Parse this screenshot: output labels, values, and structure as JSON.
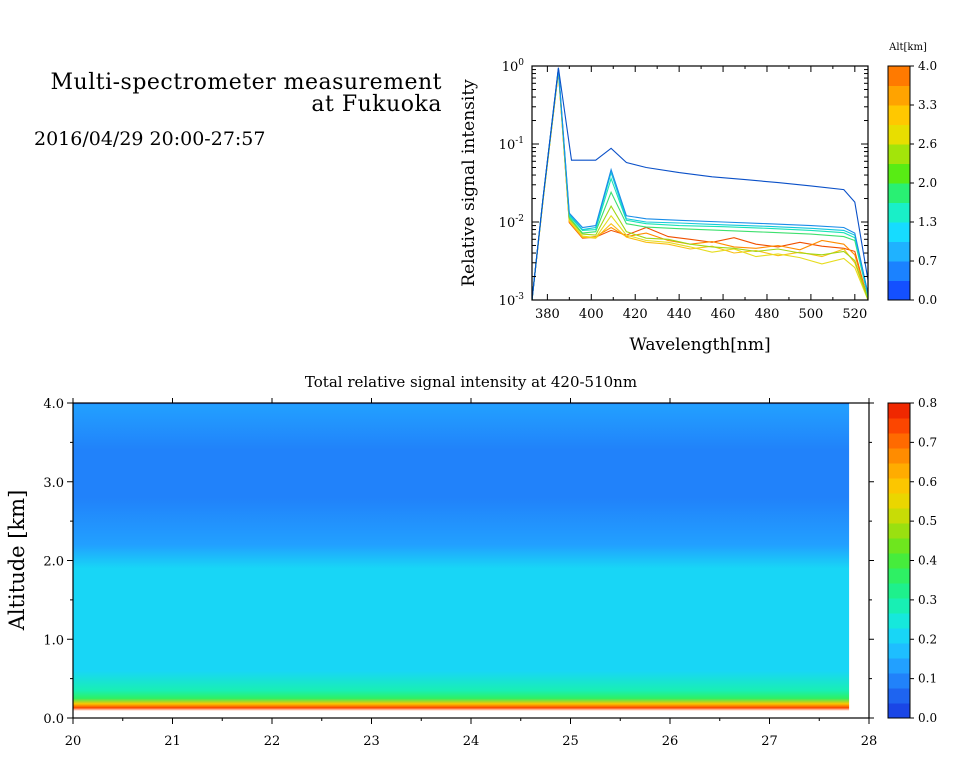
{
  "header": {
    "title_line1": "Multi-spectrometer measurement",
    "title_line2": "at Fukuoka",
    "period": "2016/04/29 20:00-27:57"
  },
  "chart_data": [
    {
      "type": "line",
      "title": "",
      "xlabel": "Wavelength[nm]",
      "ylabel": "Relative signal intensity",
      "xlim": [
        373,
        526
      ],
      "ylim": [
        0.001,
        1
      ],
      "yscale": "log",
      "xticks": [
        380,
        400,
        420,
        440,
        460,
        480,
        500,
        520
      ],
      "yticks": [
        {
          "value": 0.001,
          "base": "10",
          "exp": "-3"
        },
        {
          "value": 0.01,
          "base": "10",
          "exp": "-2"
        },
        {
          "value": 0.1,
          "base": "10",
          "exp": "-1"
        },
        {
          "value": 1,
          "base": "10",
          "exp": "0"
        }
      ],
      "legend_title": "Alt[km]",
      "colorbar": {
        "ticks": [
          "0.0",
          "0.7",
          "1.3",
          "2.0",
          "2.6",
          "3.3",
          "4.0"
        ],
        "colors": [
          "#1450ff",
          "#1b82ff",
          "#1fb2ff",
          "#16dcff",
          "#19efc8",
          "#29f073",
          "#58ec14",
          "#a3e40a",
          "#e8de00",
          "#ffc800",
          "#ffa300",
          "#ff7a00"
        ]
      },
      "series": [
        {
          "color": "#0a50c8",
          "x": [
            373,
            378,
            385,
            391,
            396,
            402,
            409,
            416,
            425,
            440,
            455,
            470,
            485,
            500,
            515,
            520,
            526
          ],
          "y": [
            0.001,
            0.02,
            0.95,
            0.062,
            0.062,
            0.062,
            0.088,
            0.058,
            0.05,
            0.043,
            0.038,
            0.035,
            0.032,
            0.029,
            0.026,
            0.018,
            0.0018
          ]
        },
        {
          "color": "#1a8ce8",
          "x": [
            373,
            378,
            385,
            390,
            396,
            402,
            409,
            416,
            425,
            440,
            460,
            480,
            500,
            515,
            520,
            526
          ],
          "y": [
            0.001,
            0.02,
            0.93,
            0.013,
            0.0085,
            0.009,
            0.047,
            0.012,
            0.011,
            0.0105,
            0.01,
            0.0095,
            0.009,
            0.0085,
            0.0072,
            0.0012
          ]
        },
        {
          "color": "#12c8dc",
          "x": [
            373,
            378,
            385,
            390,
            396,
            402,
            409,
            416,
            425,
            440,
            460,
            480,
            500,
            515,
            520,
            526
          ],
          "y": [
            0.001,
            0.02,
            0.92,
            0.0125,
            0.008,
            0.0085,
            0.043,
            0.011,
            0.01,
            0.0097,
            0.0092,
            0.0088,
            0.0083,
            0.0078,
            0.0068,
            0.0012
          ]
        },
        {
          "color": "#1ae4b4",
          "x": [
            373,
            378,
            385,
            390,
            396,
            402,
            409,
            416,
            425,
            440,
            460,
            480,
            500,
            515,
            520,
            526
          ],
          "y": [
            0.001,
            0.02,
            0.91,
            0.012,
            0.0078,
            0.008,
            0.036,
            0.0105,
            0.0095,
            0.009,
            0.0087,
            0.0083,
            0.0078,
            0.0073,
            0.0063,
            0.0011
          ]
        },
        {
          "color": "#3ee06e",
          "x": [
            373,
            378,
            385,
            390,
            396,
            402,
            409,
            416,
            425,
            440,
            460,
            480,
            500,
            515,
            520,
            526
          ],
          "y": [
            0.001,
            0.02,
            0.9,
            0.0115,
            0.0072,
            0.0075,
            0.024,
            0.0095,
            0.0086,
            0.0082,
            0.0078,
            0.0074,
            0.007,
            0.0065,
            0.0058,
            0.0011
          ]
        },
        {
          "color": "#a0d614",
          "x": [
            373,
            378,
            385,
            390,
            396,
            402,
            409,
            416,
            425,
            435,
            445,
            455,
            465,
            475,
            485,
            495,
            505,
            515,
            520,
            526
          ],
          "y": [
            0.001,
            0.019,
            0.88,
            0.011,
            0.007,
            0.0068,
            0.016,
            0.0075,
            0.0062,
            0.006,
            0.0052,
            0.0048,
            0.0046,
            0.0042,
            0.0045,
            0.004,
            0.0038,
            0.0042,
            0.0032,
            0.001
          ]
        },
        {
          "color": "#e6dc1e",
          "x": [
            373,
            378,
            385,
            390,
            396,
            402,
            409,
            416,
            425,
            435,
            445,
            455,
            465,
            475,
            485,
            495,
            505,
            515,
            520,
            526
          ],
          "y": [
            0.001,
            0.019,
            0.87,
            0.0105,
            0.0066,
            0.0063,
            0.012,
            0.0068,
            0.0058,
            0.0055,
            0.0048,
            0.0041,
            0.0045,
            0.0036,
            0.0039,
            0.0035,
            0.0029,
            0.0034,
            0.0026,
            0.001
          ]
        },
        {
          "color": "#fabe14",
          "x": [
            373,
            378,
            385,
            390,
            396,
            402,
            409,
            416,
            425,
            435,
            445,
            455,
            465,
            475,
            485,
            495,
            505,
            515,
            520,
            526
          ],
          "y": [
            0.001,
            0.019,
            0.86,
            0.0102,
            0.0064,
            0.0062,
            0.0095,
            0.0064,
            0.0055,
            0.0052,
            0.0045,
            0.0049,
            0.004,
            0.0043,
            0.0037,
            0.0041,
            0.0036,
            0.0045,
            0.003,
            0.001
          ]
        },
        {
          "color": "#ff8c00",
          "x": [
            373,
            378,
            385,
            390,
            396,
            402,
            409,
            416,
            425,
            435,
            445,
            455,
            465,
            475,
            485,
            495,
            505,
            515,
            520,
            526
          ],
          "y": [
            0.001,
            0.019,
            0.85,
            0.01,
            0.0063,
            0.0065,
            0.0085,
            0.0065,
            0.0072,
            0.0058,
            0.0052,
            0.0056,
            0.0048,
            0.0046,
            0.005,
            0.0044,
            0.0058,
            0.0052,
            0.0038,
            0.001
          ]
        },
        {
          "color": "#f05000",
          "x": [
            373,
            378,
            385,
            390,
            396,
            402,
            409,
            416,
            425,
            435,
            445,
            455,
            465,
            475,
            485,
            495,
            505,
            515,
            520,
            526
          ],
          "y": [
            0.001,
            0.019,
            0.84,
            0.0098,
            0.0062,
            0.0064,
            0.0078,
            0.0068,
            0.0085,
            0.0065,
            0.006,
            0.0055,
            0.0063,
            0.0052,
            0.0048,
            0.0055,
            0.0049,
            0.0046,
            0.0042,
            0.001
          ]
        }
      ]
    },
    {
      "type": "heatmap",
      "title": "Total relative signal intensity at 420-510nm",
      "xlabel": "",
      "ylabel": "Altitude [km]",
      "xlim": [
        20,
        28
      ],
      "ylim": [
        0,
        4
      ],
      "x_data_end": 27.8,
      "xticks": [
        "20",
        "21",
        "22",
        "23",
        "24",
        "25",
        "26",
        "27",
        "28"
      ],
      "yticks": [
        "0.0",
        "1.0",
        "2.0",
        "3.0",
        "4.0"
      ],
      "colorbar": {
        "ticks": [
          "0.0",
          "0.1",
          "0.2",
          "0.3",
          "0.4",
          "0.5",
          "0.6",
          "0.7",
          "0.8"
        ],
        "colors": [
          "#1a46e6",
          "#1e64f0",
          "#2182fa",
          "#22a0ff",
          "#1ebeff",
          "#18d6f6",
          "#16e8dc",
          "#18efb4",
          "#1ef08c",
          "#2ef064",
          "#46ec3c",
          "#6ee61e",
          "#9ae010",
          "#c8dc06",
          "#ead600",
          "#fcc600",
          "#ffac00",
          "#ff8c00",
          "#ff6a00",
          "#fc4600",
          "#f02800"
        ]
      },
      "profile": [
        {
          "alt": 0.13,
          "value": 0.76
        },
        {
          "alt": 0.18,
          "value": 0.6
        },
        {
          "alt": 0.25,
          "value": 0.34
        },
        {
          "alt": 0.35,
          "value": 0.26
        },
        {
          "alt": 0.6,
          "value": 0.2
        },
        {
          "alt": 1.0,
          "value": 0.2
        },
        {
          "alt": 1.5,
          "value": 0.2
        },
        {
          "alt": 1.9,
          "value": 0.2
        },
        {
          "alt": 2.2,
          "value": 0.1
        },
        {
          "alt": 2.8,
          "value": 0.06
        },
        {
          "alt": 3.4,
          "value": 0.08
        },
        {
          "alt": 3.98,
          "value": 0.11
        },
        {
          "alt": 4.0,
          "value": 0.0
        }
      ]
    }
  ]
}
